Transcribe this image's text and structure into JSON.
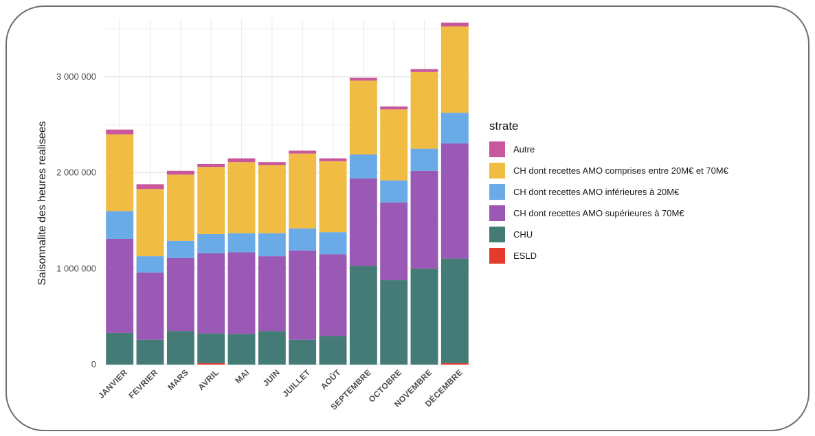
{
  "chart_data": {
    "type": "bar",
    "stacked": true,
    "title": "",
    "xlabel": "",
    "ylabel": "Saisonnalite des heures realisees",
    "ylim": [
      0,
      3600000
    ],
    "yticks": [
      0,
      1000000,
      2000000,
      3000000
    ],
    "ytick_labels": [
      "0",
      "1 000 000",
      "2 000 000",
      "3 000 000"
    ],
    "grid": true,
    "legend_position": "right",
    "legend_title": "strate",
    "categories": [
      "JANVIER",
      "FEVRIER",
      "MARS",
      "AVRIL",
      "MAI",
      "JUIN",
      "JUILLET",
      "AOÛT",
      "SEPTEMBRE",
      "OCTOBRE",
      "NOVEMBRE",
      "DÉCEMBRE"
    ],
    "series": [
      {
        "name": "ESLD",
        "color": "#e33b2e",
        "values": [
          0,
          0,
          0,
          15000,
          0,
          0,
          0,
          0,
          0,
          0,
          0,
          15000
        ]
      },
      {
        "name": "CHU",
        "color": "#447b77",
        "values": [
          330000,
          260000,
          350000,
          310000,
          320000,
          350000,
          260000,
          300000,
          1030000,
          880000,
          1000000,
          1090000
        ]
      },
      {
        "name": "CH dont recettes AMO supérieures à 70M€",
        "color": "#9b59b6",
        "values": [
          980000,
          700000,
          760000,
          835000,
          850000,
          780000,
          930000,
          850000,
          910000,
          810000,
          1020000,
          1200000
        ]
      },
      {
        "name": "CH dont recettes AMO inférieures à 20M€",
        "color": "#6aaae6",
        "values": [
          290000,
          170000,
          180000,
          200000,
          200000,
          240000,
          230000,
          230000,
          250000,
          230000,
          230000,
          320000
        ]
      },
      {
        "name": "CH dont recettes AMO comprises entre 20M€ et 70M€",
        "color": "#f0bc44",
        "values": [
          800000,
          700000,
          690000,
          700000,
          740000,
          710000,
          780000,
          740000,
          770000,
          740000,
          800000,
          900000
        ]
      },
      {
        "name": "Autre",
        "color": "#c9579b",
        "values": [
          50000,
          50000,
          40000,
          30000,
          40000,
          30000,
          30000,
          30000,
          30000,
          30000,
          30000,
          40000
        ]
      }
    ],
    "legend_order": [
      "Autre",
      "CH dont recettes AMO comprises entre 20M€ et 70M€",
      "CH dont recettes AMO inférieures à 20M€",
      "CH dont recettes AMO supérieures à 70M€",
      "CHU",
      "ESLD"
    ]
  }
}
